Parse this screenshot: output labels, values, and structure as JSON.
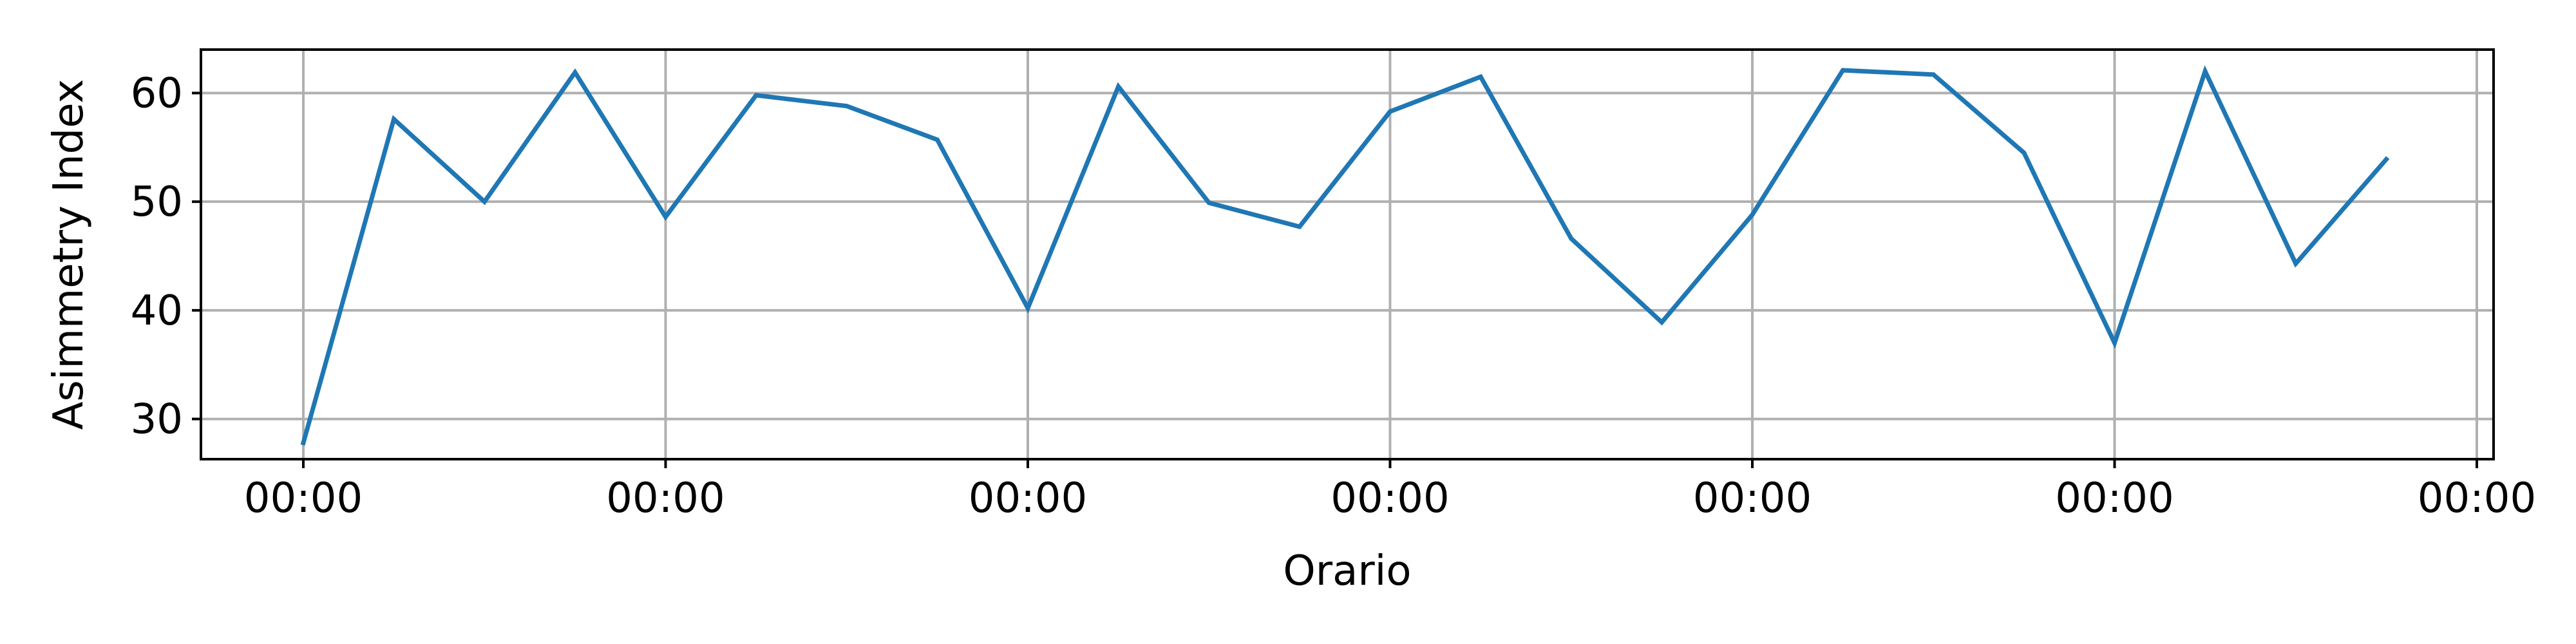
{
  "chart_data": {
    "type": "line",
    "title": "",
    "xlabel": "Orario",
    "ylabel": "Asimmetry Index",
    "x_tick_labels": [
      "00:00",
      "00:00",
      "00:00",
      "00:00",
      "00:00",
      "00:00",
      "00:00"
    ],
    "y_ticks": [
      30,
      40,
      50,
      60
    ],
    "ylim": [
      26.3,
      64
    ],
    "grid": true,
    "legend": "none",
    "series": [
      {
        "color": "#1f77b4",
        "values": [
          27.8,
          57.6,
          50.0,
          61.9,
          48.6,
          59.8,
          58.8,
          55.7,
          40.2,
          60.6,
          49.9,
          47.7,
          58.3,
          61.5,
          46.6,
          38.9,
          48.8,
          62.1,
          61.7,
          54.5,
          37.0,
          62.0,
          44.3,
          53.9
        ]
      }
    ]
  }
}
